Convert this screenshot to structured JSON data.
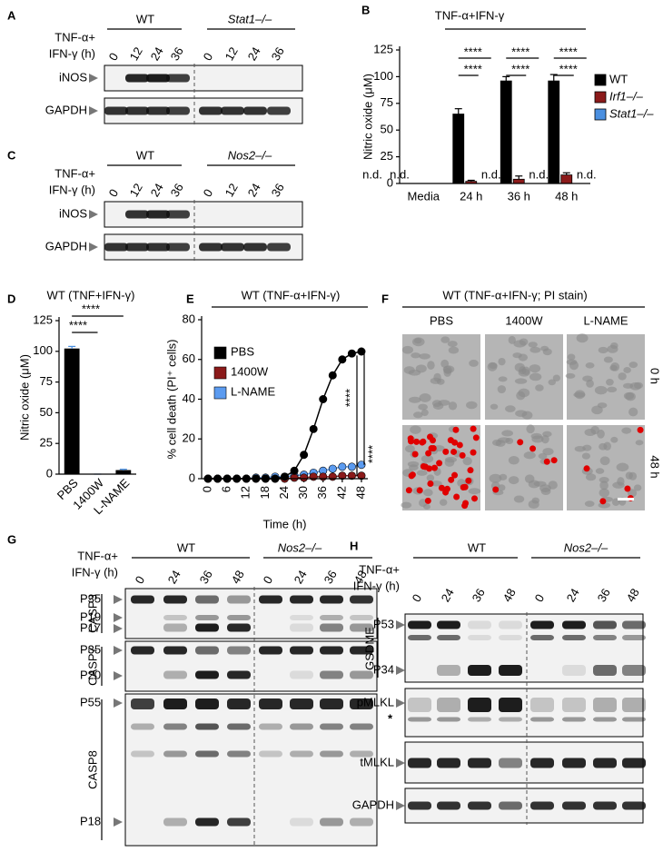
{
  "panel_labels": [
    "A",
    "B",
    "C",
    "D",
    "E",
    "F",
    "G",
    "H"
  ],
  "blot_A": {
    "treatment": [
      "TNF-α+",
      "IFN-γ (h)"
    ],
    "groups": [
      "WT",
      "Stat1–/–"
    ],
    "lanes": [
      0,
      12,
      24,
      36,
      0,
      12,
      24,
      36
    ],
    "bands": [
      "iNOS",
      "GAPDH"
    ]
  },
  "blot_C": {
    "treatment": [
      "TNF-α+",
      "IFN-γ (h)"
    ],
    "groups": [
      "WT",
      "Nos2–/–"
    ],
    "lanes": [
      0,
      12,
      24,
      36,
      0,
      12,
      24,
      36
    ],
    "bands": [
      "iNOS",
      "GAPDH"
    ]
  },
  "microscopy_F": {
    "title": "WT (TNF-α+IFN-γ; PI stain)",
    "columns": [
      "PBS",
      "1400W",
      "L-NAME"
    ],
    "rows": [
      "0 h",
      "48 h"
    ]
  },
  "blot_G": {
    "treatment": [
      "TNF-α+",
      "IFN-γ (h)"
    ],
    "groups": [
      "WT",
      "Nos2–/–"
    ],
    "lanes": [
      0,
      24,
      36,
      48,
      0,
      24,
      36,
      48
    ],
    "proteins": [
      "CASP3",
      "CASP7",
      "CASP8"
    ],
    "fragments": [
      [
        "P35",
        "P19",
        "P17"
      ],
      [
        "P35",
        "P20"
      ],
      [
        "P55",
        "P18"
      ]
    ]
  },
  "blot_H": {
    "treatment": [
      "TNF-α+",
      "IFN-γ (h)"
    ],
    "groups": [
      "WT",
      "Nos2–/–"
    ],
    "lanes": [
      0,
      24,
      36,
      48,
      0,
      24,
      36,
      48
    ],
    "proteins": [
      "GSDME",
      "pMLKL",
      "tMLKL",
      "GAPDH"
    ],
    "fragments": [
      "P53",
      "P34"
    ],
    "marker": "*"
  },
  "chart_data": [
    {
      "type": "bar",
      "title": "TNF-α+IFN-γ",
      "ylabel": "Nitric oxide (μM)",
      "categories": [
        "Media",
        "24 h",
        "36 h",
        "48 h"
      ],
      "series": [
        {
          "name": "WT",
          "color": "#000000",
          "values": [
            null,
            65,
            96,
            96
          ],
          "errors": [
            null,
            5,
            4,
            6
          ],
          "value_labels": [
            "n.d.",
            null,
            null,
            null
          ]
        },
        {
          "name": "Irf1–/–",
          "color": "#8b1a1a",
          "values": [
            null,
            2,
            4,
            8
          ],
          "errors": [
            null,
            1,
            3,
            2
          ],
          "value_labels": [
            "n.d.",
            null,
            null,
            null
          ]
        },
        {
          "name": "Stat1–/–",
          "color": "#4a8fe0",
          "values": [
            null,
            null,
            null,
            null
          ],
          "value_labels": [
            null,
            "n.d.",
            "n.d.",
            "n.d."
          ]
        }
      ],
      "ylim": [
        0,
        125
      ],
      "yticks": [
        0,
        25,
        50,
        75,
        100,
        125
      ],
      "annotations": [
        "****",
        "****",
        "****",
        "****",
        "****",
        "****"
      ]
    },
    {
      "type": "bar",
      "title": "WT (TNF+IFN-γ)",
      "ylabel": "Nitric oxide (μM)",
      "categories": [
        "PBS",
        "1400W",
        "L-NAME"
      ],
      "values": [
        102,
        0,
        3
      ],
      "errors": [
        2,
        0,
        1
      ],
      "color": "#000000",
      "ylim": [
        0,
        125
      ],
      "yticks": [
        0,
        25,
        50,
        75,
        100,
        125
      ],
      "annotations": [
        "****",
        "****"
      ]
    },
    {
      "type": "line",
      "title": "WT (TNF-α+IFN-γ)",
      "xlabel": "Time (h)",
      "ylabel": "% cell death (PI⁺ cells)",
      "x": [
        0,
        3,
        6,
        9,
        12,
        15,
        18,
        21,
        24,
        27,
        30,
        33,
        36,
        39,
        42,
        45,
        48
      ],
      "series": [
        {
          "name": "PBS",
          "color": "#000000",
          "values": [
            0,
            0,
            0,
            0,
            0,
            0,
            0,
            0,
            1,
            4,
            12,
            25,
            40,
            52,
            60,
            63,
            64
          ]
        },
        {
          "name": "1400W",
          "color": "#8b1a1a",
          "values": [
            0,
            0,
            0,
            0,
            0,
            0,
            0,
            0,
            0,
            0.5,
            0.5,
            1,
            1,
            1,
            1.5,
            1.5,
            1.5
          ]
        },
        {
          "name": "L-NAME",
          "color": "#5b9bf0",
          "values": [
            0,
            0,
            0,
            0,
            0,
            0.5,
            0.5,
            1,
            1,
            1.5,
            2,
            3,
            4,
            5,
            6,
            6,
            7
          ]
        }
      ],
      "xlim": [
        -2,
        50
      ],
      "xticks": [
        0,
        6,
        12,
        18,
        24,
        30,
        36,
        42,
        48
      ],
      "ylim": [
        0,
        80
      ],
      "yticks": [
        0,
        20,
        40,
        60,
        80
      ],
      "annotations": [
        "****",
        "****"
      ]
    }
  ]
}
